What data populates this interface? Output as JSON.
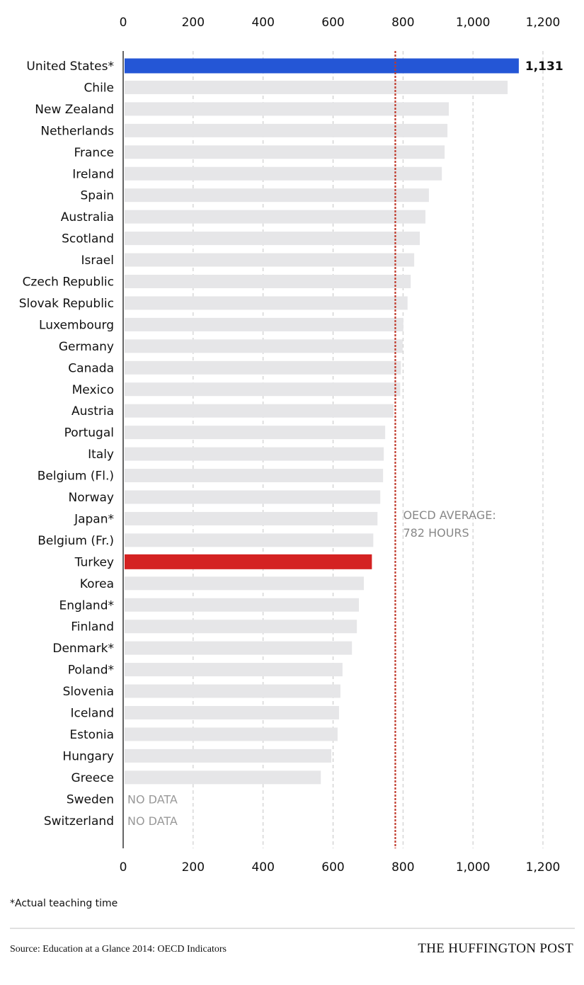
{
  "chart_data": {
    "type": "bar",
    "orientation": "horizontal",
    "title": "",
    "xlabel": "",
    "ylabel": "",
    "xlim": [
      0,
      1200
    ],
    "x_ticks": [
      0,
      200,
      400,
      600,
      800,
      1000,
      1200
    ],
    "x_tick_labels": [
      "0",
      "200",
      "400",
      "600",
      "800",
      "1,000",
      "1,200"
    ],
    "grid": true,
    "categories": [
      "United States*",
      "Chile",
      "New Zealand",
      "Netherlands",
      "France",
      "Ireland",
      "Spain",
      "Australia",
      "Scotland",
      "Israel",
      "Czech Republic",
      "Slovak Republic",
      "Luxembourg",
      "Germany",
      "Canada",
      "Mexico",
      "Austria",
      "Portugal",
      "Italy",
      "Belgium (Fl.)",
      "Norway",
      "Japan*",
      "Belgium (Fr.)",
      "Turkey",
      "Korea",
      "England*",
      "Finland",
      "Denmark*",
      "Poland*",
      "Slovenia",
      "Iceland",
      "Estonia",
      "Hungary",
      "Greece",
      "Sweden",
      "Switzerland"
    ],
    "values": [
      1131,
      1099,
      931,
      927,
      919,
      911,
      874,
      864,
      848,
      832,
      822,
      813,
      801,
      799,
      794,
      792,
      773,
      749,
      745,
      743,
      735,
      727,
      715,
      711,
      688,
      674,
      668,
      654,
      627,
      621,
      617,
      613,
      595,
      565,
      null,
      null
    ],
    "highlight": {
      "United States*": {
        "color": "#2456d6",
        "label": "1,131"
      },
      "Turkey": {
        "color": "#d42222"
      }
    },
    "default_bar_color": "#e6e6e8",
    "no_data_label": "NO DATA",
    "reference_line": {
      "value": 782,
      "color": "#c0392b",
      "label_lines": [
        "OECD AVERAGE:",
        "782 HOURS"
      ]
    }
  },
  "footnote": "*Actual teaching time",
  "source": "Source: Education at a Glance 2014: OECD Indicators",
  "brand": "THE HUFFINGTON POST"
}
